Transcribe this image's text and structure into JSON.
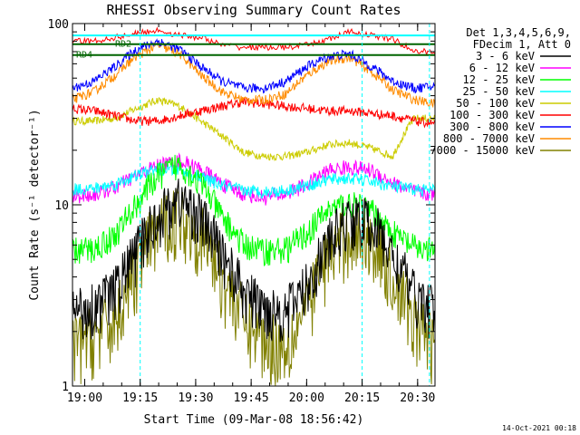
{
  "chart_data": {
    "type": "line",
    "title": "RHESSI Observing Summary Count Rates",
    "xlabel": "Start Time (09-Mar-08 18:56:42)",
    "ylabel": "Count Rate (s⁻¹ detector⁻¹)",
    "yscale": "log",
    "ylim": [
      1,
      100
    ],
    "xlim_minutes": [
      0,
      98
    ],
    "xtick_labels": [
      "19:00",
      "19:15",
      "19:30",
      "19:45",
      "20:00",
      "20:15",
      "20:30"
    ],
    "xtick_minutes": [
      3.3,
      18.3,
      33.3,
      48.3,
      63.3,
      78.3,
      93.3
    ],
    "ytick_labels": [
      "1",
      "10",
      "100"
    ],
    "ytick_values": [
      1,
      10,
      100
    ],
    "footer_date": "14-Oct-2021 00:18",
    "legend": {
      "header_line1": "Det 1,3,4,5,6,9,",
      "header_line2": "FDecim 1, Att 0",
      "placement": "right"
    },
    "flags": [
      {
        "label": "RD2",
        "color": "#006400"
      },
      {
        "label": "RD4",
        "color": "#006400"
      }
    ],
    "series": [
      {
        "name": "3 - 6 keV",
        "color": "#000000",
        "values": [
          2.6,
          2.8,
          3.4,
          5.5,
          8.7,
          10.8,
          8.6,
          5.4,
          3.3,
          2.7,
          2.6,
          3.6,
          6.2,
          8.5,
          8.0,
          5.2,
          3.2,
          2.6
        ]
      },
      {
        "name": "6 - 12 keV",
        "color": "#ff00ff",
        "values": [
          11.2,
          11.4,
          12.5,
          14.5,
          16.5,
          17.5,
          15.8,
          13.0,
          11.5,
          11.0,
          11.5,
          13.0,
          15.5,
          16.2,
          15.5,
          13.2,
          11.8,
          11.4
        ]
      },
      {
        "name": "12 - 25 keV",
        "color": "#00ff00",
        "values": [
          5.6,
          5.7,
          6.8,
          10.0,
          14.5,
          16.8,
          13.2,
          8.5,
          6.0,
          5.6,
          5.7,
          7.0,
          9.4,
          10.2,
          9.2,
          7.0,
          5.8,
          5.6
        ]
      },
      {
        "name": "25 - 50 keV",
        "color": "#00ffff",
        "values": [
          12.2,
          12.3,
          13.0,
          14.5,
          15.8,
          15.5,
          14.2,
          12.8,
          12.0,
          11.8,
          12.0,
          12.8,
          13.8,
          14.0,
          13.5,
          12.6,
          12.2,
          12.0
        ]
      },
      {
        "name": "50 - 100 keV",
        "color": "#cccc00",
        "values": [
          29.0,
          29.0,
          30.0,
          34.0,
          38.0,
          35.0,
          29.0,
          24.0,
          19.5,
          18.5,
          18.5,
          19.5,
          21.5,
          22.0,
          20.5,
          18.5,
          30.0,
          30.0
        ]
      },
      {
        "name": "100 - 300 keV",
        "color": "#ff0000",
        "values": [
          34.0,
          33.0,
          31.0,
          29.0,
          29.0,
          31.0,
          33.0,
          35.0,
          37.0,
          36.0,
          35.0,
          34.0,
          33.0,
          33.0,
          32.0,
          31.0,
          29.0,
          28.0
        ]
      },
      {
        "name": "300 - 800 keV",
        "color": "#0000ff",
        "values": [
          44.0,
          48.0,
          58.0,
          72.0,
          80.0,
          72.0,
          58.0,
          48.0,
          44.0,
          44.0,
          48.0,
          58.0,
          66.0,
          68.0,
          58.0,
          48.0,
          44.0,
          45.0
        ]
      },
      {
        "name": "800 - 7000 keV",
        "color": "#ff8c00",
        "values": [
          38.0,
          42.0,
          52.0,
          66.0,
          76.0,
          68.0,
          52.0,
          42.0,
          38.0,
          38.0,
          41.0,
          52.0,
          62.0,
          65.0,
          54.0,
          43.0,
          38.0,
          36.0
        ]
      },
      {
        "name": "7000 - 15000 keV",
        "color": "#808000",
        "values": [
          1.7,
          1.9,
          2.3,
          4.5,
          7.5,
          9.0,
          7.0,
          4.0,
          2.4,
          1.8,
          1.7,
          2.8,
          5.4,
          7.0,
          6.6,
          4.0,
          2.3,
          1.7
        ]
      }
    ],
    "series_x_minutes": [
      0,
      5.8,
      11.6,
      17.3,
      23.1,
      28.9,
      34.6,
      40.4,
      46.2,
      51.9,
      57.7,
      63.5,
      69.3,
      75.0,
      80.8,
      86.6,
      92.4,
      98.0
    ],
    "attenuator_red_values": [
      80,
      80,
      84,
      88,
      92,
      86,
      84,
      76,
      74,
      74,
      74,
      76,
      82,
      90,
      86,
      82,
      70,
      70
    ],
    "vertical_markers_minutes": [
      18.3,
      78.3,
      96.5
    ],
    "gap_markers_minutes": [
      0.8,
      84.5,
      96.5
    ]
  }
}
